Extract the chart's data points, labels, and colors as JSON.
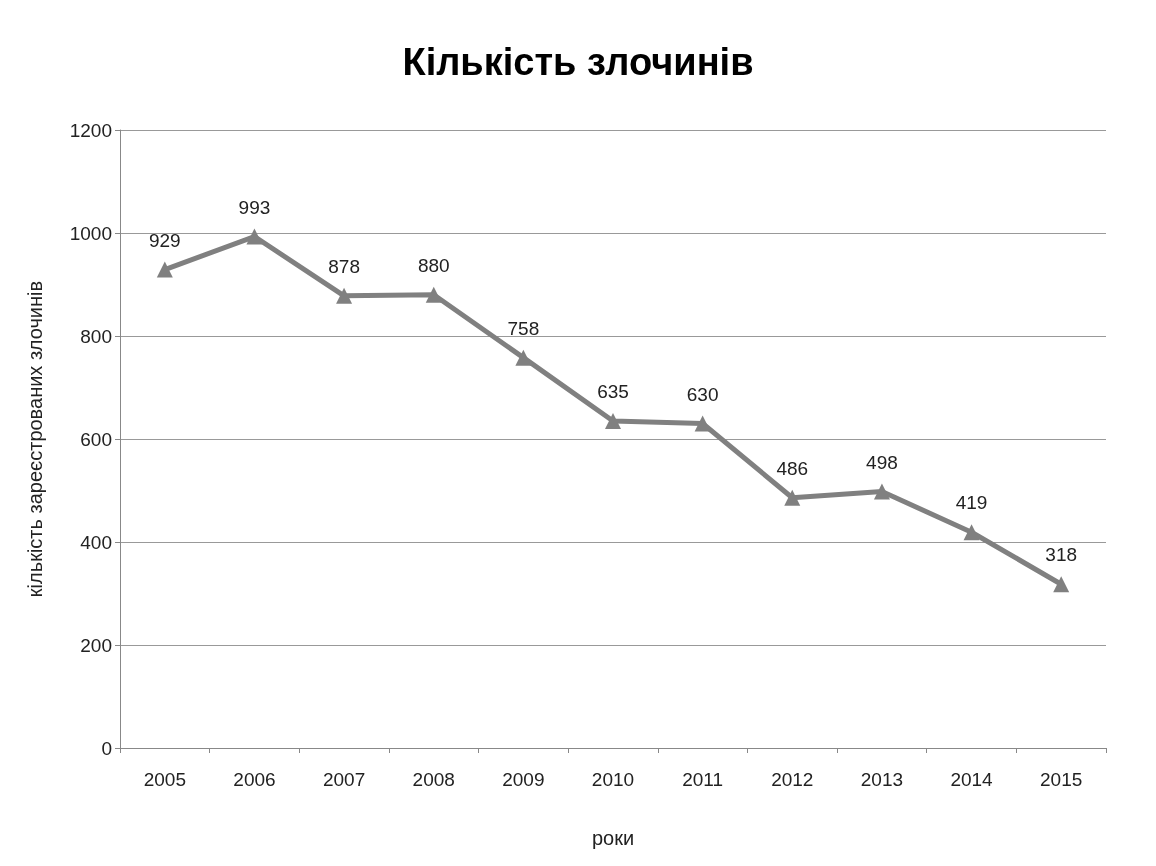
{
  "chart_data": {
    "type": "line",
    "title": "Кількість злочинів",
    "xlabel": "роки",
    "ylabel": "кількість зареєстрованих злочинів",
    "categories": [
      "2005",
      "2006",
      "2007",
      "2008",
      "2009",
      "2010",
      "2011",
      "2012",
      "2013",
      "2014",
      "2015"
    ],
    "series": [
      {
        "color": "#808080",
        "values": [
          929,
          993,
          878,
          880,
          758,
          635,
          630,
          486,
          498,
          419,
          318
        ]
      }
    ],
    "ylim": [
      0,
      1200
    ],
    "yticks": [
      0,
      200,
      400,
      600,
      800,
      1000,
      1200
    ],
    "grid": "y",
    "marker": "triangle",
    "line_style": "solid",
    "data_labels": true
  }
}
